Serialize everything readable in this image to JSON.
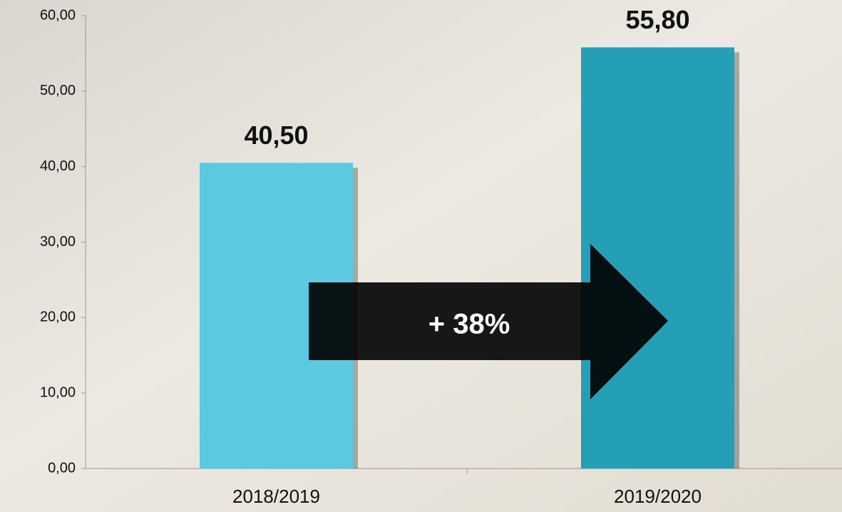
{
  "chart_data": {
    "type": "bar",
    "categories": [
      "2018/2019",
      "2019/2020"
    ],
    "values": [
      40.5,
      55.8
    ],
    "value_labels": [
      "40,50",
      "55,80"
    ],
    "colors": [
      "#5bc9df",
      "#249fb6"
    ],
    "ylim": [
      0,
      60
    ],
    "yticks": [
      {
        "value": 0,
        "label": "0,00"
      },
      {
        "value": 10,
        "label": "10,00"
      },
      {
        "value": 20,
        "label": "20,00"
      },
      {
        "value": 30,
        "label": "30,00"
      },
      {
        "value": 40,
        "label": "40,00"
      },
      {
        "value": 50,
        "label": "50,00"
      },
      {
        "value": 60,
        "label": "60,00"
      }
    ],
    "annotation": "+ 38%"
  }
}
